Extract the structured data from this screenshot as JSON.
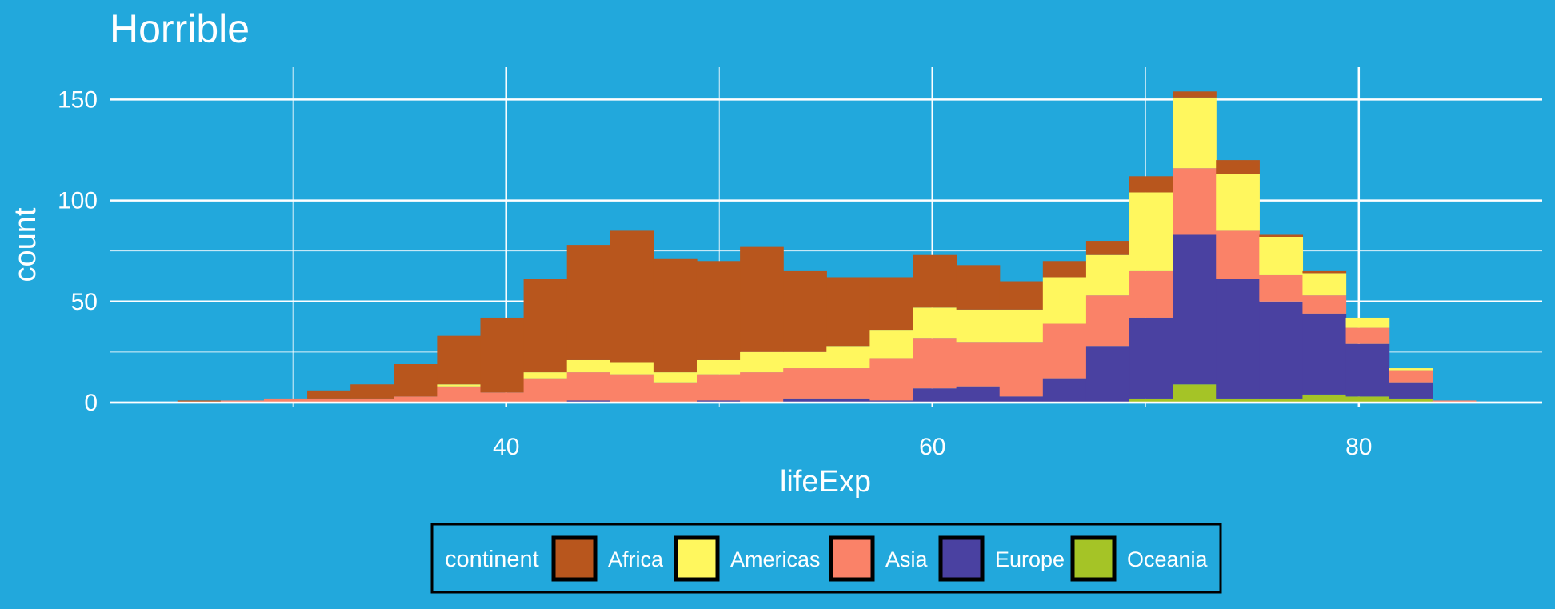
{
  "colors": {
    "background": "#22a8dc",
    "grid": "#ffffff",
    "text": "#ffffff",
    "legend_border": "#000000"
  },
  "chart_data": {
    "type": "bar",
    "subtype": "stacked-histogram",
    "title": "Horrible",
    "xlabel": "lifeExp",
    "ylabel": "count",
    "xlim": [
      21.4,
      88.6
    ],
    "ylim": [
      -2,
      166
    ],
    "x_ticks": [
      40,
      60,
      80
    ],
    "y_ticks": [
      0,
      50,
      100,
      150
    ],
    "grid": true,
    "legend": {
      "title": "continent",
      "position": "bottom"
    },
    "bin_width": 2.03,
    "bin_starts": [
      24.58,
      26.61,
      28.64,
      30.67,
      32.7,
      34.73,
      36.76,
      38.79,
      40.82,
      42.85,
      44.88,
      46.91,
      48.94,
      50.97,
      53.0,
      55.03,
      57.06,
      59.09,
      61.12,
      63.15,
      65.18,
      67.21,
      69.24,
      71.27,
      73.3,
      75.33,
      77.36,
      79.39,
      81.42,
      83.45
    ],
    "stack_order": [
      "Oceania",
      "Europe",
      "Asia",
      "Americas",
      "Africa"
    ],
    "series": [
      {
        "name": "Africa",
        "color": "#b8561d",
        "values": [
          1,
          0,
          0,
          4,
          7,
          16,
          24,
          37,
          46,
          57,
          65,
          56,
          49,
          52,
          40,
          34,
          26,
          26,
          22,
          14,
          8,
          7,
          8,
          3,
          7,
          1,
          1,
          0,
          0,
          0
        ]
      },
      {
        "name": "Americas",
        "color": "#fff75e",
        "values": [
          0,
          0,
          0,
          0,
          0,
          0,
          1,
          0,
          3,
          6,
          6,
          5,
          7,
          10,
          8,
          11,
          14,
          15,
          16,
          16,
          23,
          20,
          39,
          35,
          28,
          19,
          11,
          5,
          1,
          0
        ]
      },
      {
        "name": "Asia",
        "color": "#fa8268",
        "values": [
          0,
          1,
          2,
          2,
          2,
          3,
          8,
          5,
          12,
          14,
          14,
          10,
          13,
          15,
          15,
          15,
          21,
          25,
          22,
          27,
          27,
          25,
          23,
          33,
          24,
          13,
          9,
          8,
          6,
          1
        ]
      },
      {
        "name": "Europe",
        "color": "#4a41a1",
        "values": [
          0,
          0,
          0,
          0,
          0,
          0,
          0,
          0,
          0,
          1,
          0,
          0,
          1,
          0,
          2,
          2,
          1,
          7,
          8,
          3,
          12,
          28,
          40,
          74,
          59,
          48,
          40,
          26,
          8,
          0
        ]
      },
      {
        "name": "Oceania",
        "color": "#a5c426",
        "values": [
          0,
          0,
          0,
          0,
          0,
          0,
          0,
          0,
          0,
          0,
          0,
          0,
          0,
          0,
          0,
          0,
          0,
          0,
          0,
          0,
          0,
          0,
          2,
          9,
          2,
          2,
          4,
          3,
          2,
          0
        ]
      }
    ]
  }
}
